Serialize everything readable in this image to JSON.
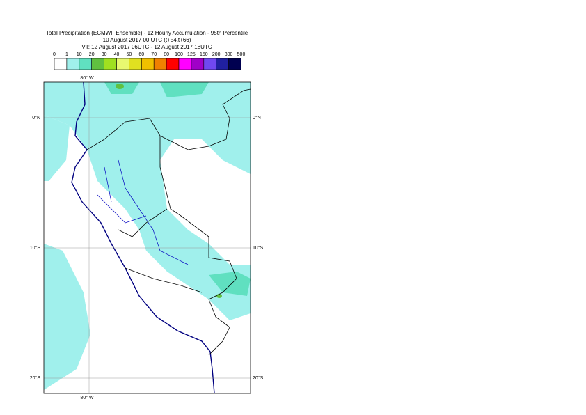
{
  "header": {
    "title_lines": [
      "Total Precipitation (ECMWF Ensemble) - 12 Hourly Accumulation - 95th Percentile",
      "10 August 2017 00 UTC (t+54,t+66)",
      "VT: 12 August 2017 06UTC - 12 August 2017 18UTC"
    ]
  },
  "legend": {
    "labels": [
      "0",
      "1",
      "10",
      "20",
      "30",
      "40",
      "50",
      "60",
      "70",
      "80",
      "100",
      "125",
      "150",
      "200",
      "300",
      "500"
    ],
    "colors": [
      "#ffffff",
      "#a0f0ec",
      "#60e0c0",
      "#60c040",
      "#a0e020",
      "#e8f870",
      "#e0e020",
      "#f0c000",
      "#f08000",
      "#ff0000",
      "#ff00ff",
      "#a000c8",
      "#7048f0",
      "#2020a0",
      "#000050"
    ]
  },
  "map": {
    "top_labels": [
      "80° W"
    ],
    "bottom_labels": [
      "80° W"
    ],
    "left_labels": [
      "0°N",
      "10°S",
      "20°S"
    ],
    "right_labels": [
      "0°N",
      "10°S",
      "20°S"
    ]
  }
}
